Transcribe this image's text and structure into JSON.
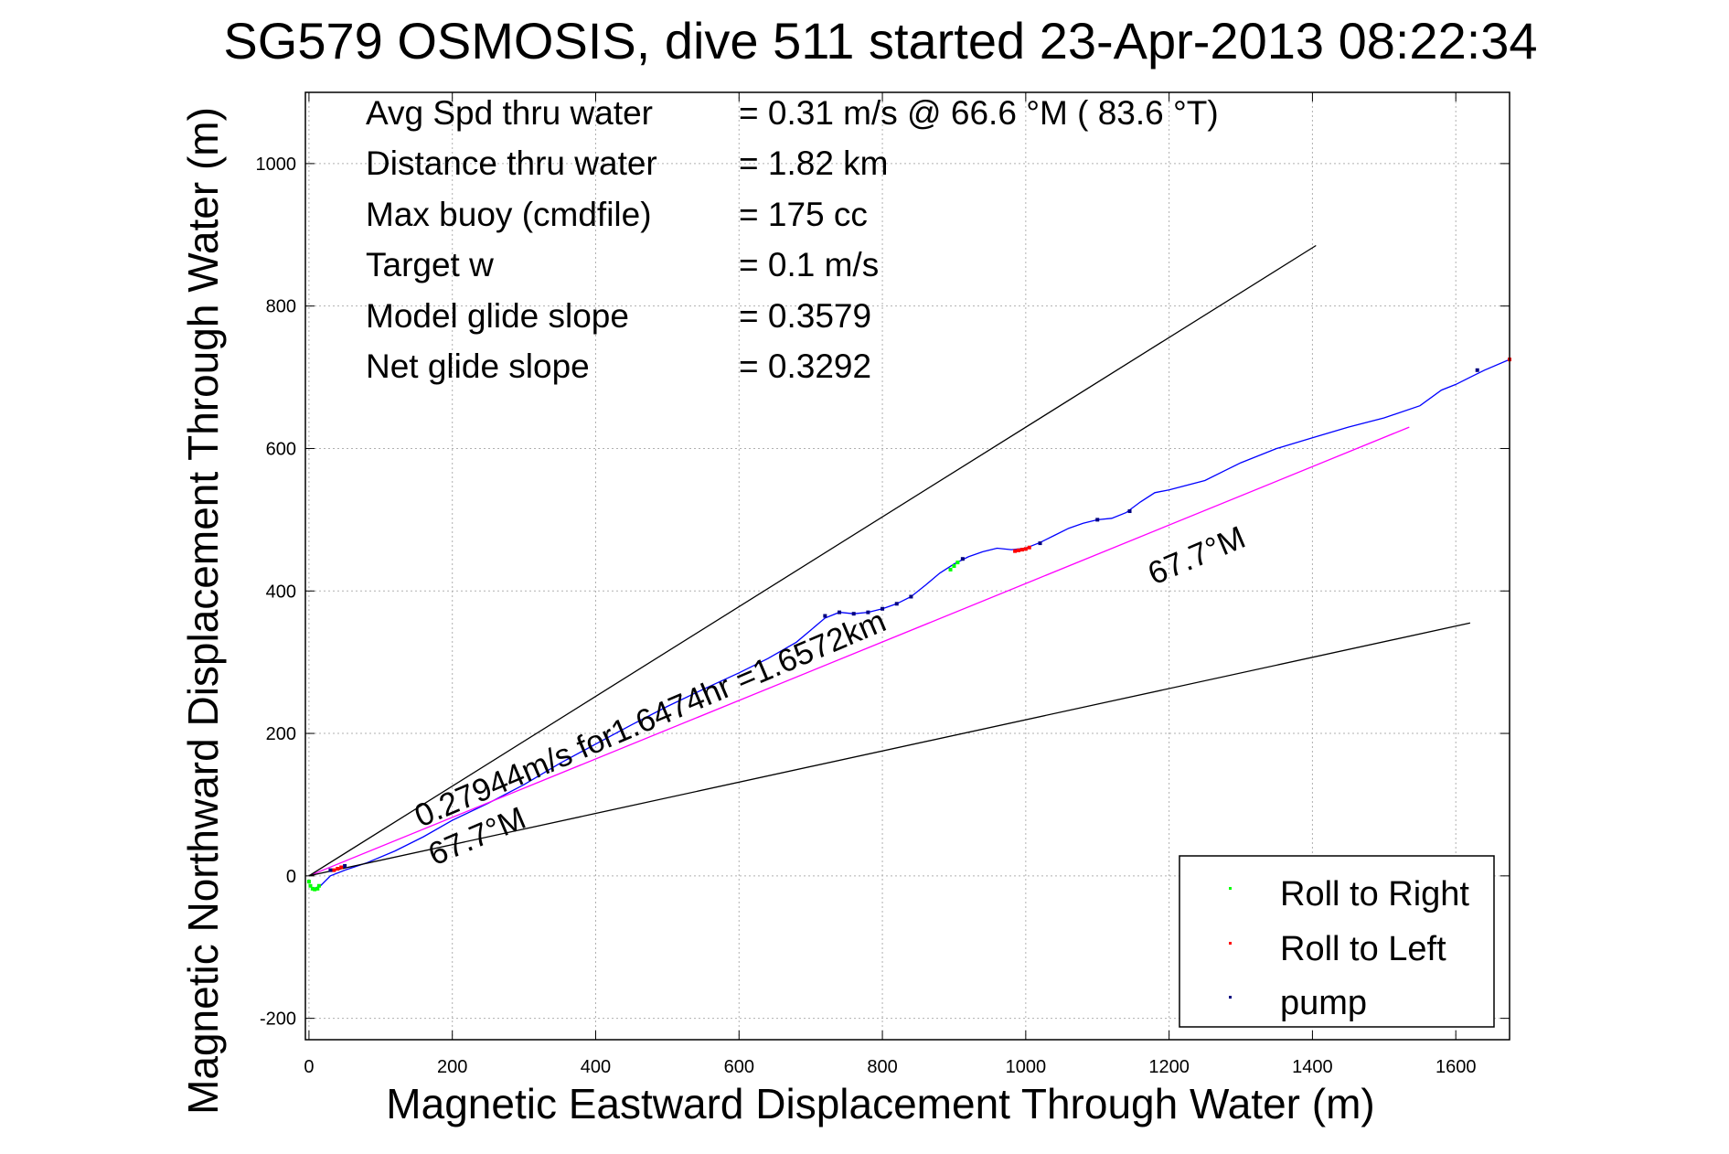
{
  "chart_data": {
    "type": "line",
    "title": "SG579 OSMOSIS, dive 511 started 23-Apr-2013 08:22:34",
    "xlabel": "Magnetic Eastward Displacement Through Water (m)",
    "ylabel": "Magnetic Northward Displacement Through Water (m)",
    "xlim": [
      -5,
      1675
    ],
    "ylim": [
      -230,
      1100
    ],
    "xticks": [
      0,
      200,
      400,
      600,
      800,
      1000,
      1200,
      1400,
      1600
    ],
    "yticks": [
      -200,
      0,
      200,
      400,
      600,
      800,
      1000
    ],
    "grid": true,
    "info_lines": [
      {
        "label": "Avg Spd thru water",
        "value": "=  0.31 m/s @  66.6 °M ( 83.6 °T)"
      },
      {
        "label": "Distance thru water",
        "value": "=  1.82 km"
      },
      {
        "label": "Max buoy (cmdfile)",
        "value": "= 175 cc"
      },
      {
        "label": "Target w",
        "value": "= 0.1 m/s"
      },
      {
        "label": "Model glide slope",
        "value": "= 0.3579"
      },
      {
        "label": "Net glide slope",
        "value": "= 0.3292"
      }
    ],
    "annotations": {
      "track_text": "0.27944m/s for1.6474hr =1.6572km",
      "upper_heading": "67.7°M",
      "lower_heading": "67.7°M"
    },
    "series": [
      {
        "name": "track",
        "color": "#0000ff",
        "x": [
          5,
          15,
          30,
          50,
          80,
          120,
          160,
          200,
          250,
          300,
          350,
          400,
          450,
          500,
          550,
          600,
          640,
          680,
          700,
          720,
          740,
          760,
          780,
          800,
          820,
          840,
          860,
          880,
          900,
          920,
          940,
          960,
          980,
          1000,
          1020,
          1040,
          1060,
          1080,
          1100,
          1120,
          1140,
          1160,
          1180,
          1200,
          1250,
          1280,
          1300,
          1350,
          1400,
          1450,
          1500,
          1550,
          1580,
          1600,
          1620,
          1640,
          1675
        ],
        "y": [
          -18,
          -15,
          0,
          8,
          18,
          35,
          55,
          78,
          102,
          128,
          158,
          185,
          212,
          238,
          262,
          285,
          305,
          328,
          345,
          362,
          370,
          368,
          370,
          375,
          382,
          392,
          408,
          425,
          438,
          448,
          455,
          460,
          458,
          460,
          468,
          478,
          488,
          495,
          500,
          502,
          510,
          525,
          538,
          542,
          555,
          570,
          580,
          600,
          615,
          630,
          643,
          660,
          682,
          690,
          700,
          710,
          725
        ]
      },
      {
        "name": "mean track",
        "color": "#ff00ff",
        "x": [
          0,
          1535
        ],
        "y": [
          0,
          630
        ]
      },
      {
        "name": "upper bound",
        "color": "#000000",
        "x": [
          0,
          1405
        ],
        "y": [
          0,
          885
        ]
      },
      {
        "name": "lower bound",
        "color": "#000000",
        "x": [
          0,
          1620
        ],
        "y": [
          0,
          355
        ]
      },
      {
        "name": "Roll to Right",
        "type": "scatter",
        "color": "#00ff00",
        "x": [
          0,
          2,
          5,
          8,
          12,
          14,
          895,
          900,
          905
        ],
        "y": [
          -8,
          -14,
          -18,
          -19,
          -18,
          -14,
          430,
          435,
          440
        ]
      },
      {
        "name": "Roll to Left",
        "type": "scatter",
        "color": "#ff0000",
        "x": [
          35,
          40,
          45,
          985,
          990,
          995,
          1000,
          1005,
          1675
        ],
        "y": [
          8,
          10,
          12,
          456,
          457,
          458,
          459,
          461,
          725
        ]
      },
      {
        "name": "pump",
        "type": "scatter",
        "color": "#000080",
        "x": [
          30,
          50,
          720,
          740,
          760,
          780,
          800,
          820,
          840,
          912,
          1020,
          1100,
          1145,
          1630
        ],
        "y": [
          8,
          14,
          365,
          370,
          368,
          370,
          375,
          382,
          392,
          445,
          467,
          500,
          512,
          710
        ]
      }
    ],
    "legend": {
      "position": "bottom-right",
      "entries": [
        {
          "label": "Roll to Right",
          "color": "#00ff00"
        },
        {
          "label": "Roll to Left",
          "color": "#ff0000"
        },
        {
          "label": "pump",
          "color": "#000080"
        }
      ]
    }
  }
}
